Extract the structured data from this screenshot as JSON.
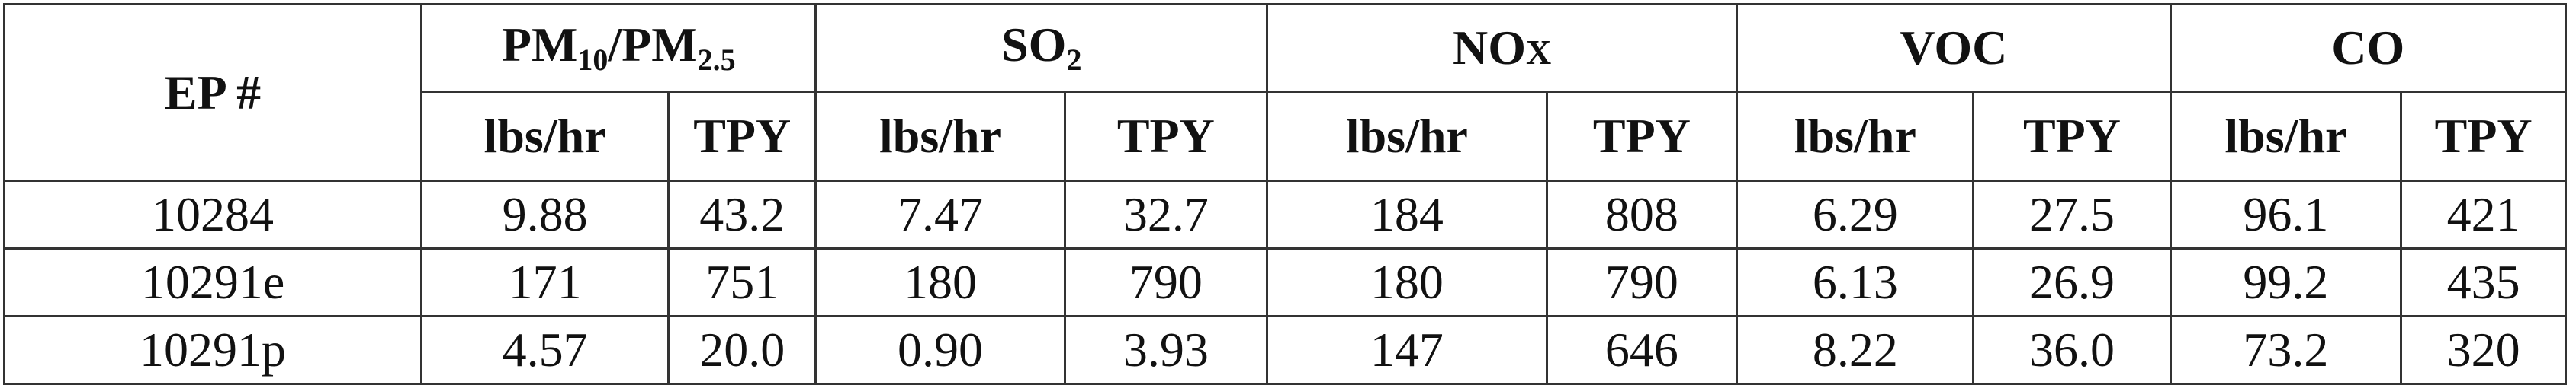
{
  "header": {
    "ep_label": "EP #",
    "groups": [
      {
        "main": "PM",
        "sub1": "10",
        "sep": "/PM",
        "sub2": "2.5"
      },
      {
        "main": "SO",
        "sub1": "2"
      },
      {
        "main": "NO",
        "small": "X"
      },
      {
        "main": "VOC"
      },
      {
        "main": "CO"
      }
    ],
    "units": [
      "lbs/hr",
      "TPY",
      "lbs/hr",
      "TPY",
      "lbs/hr",
      "TPY",
      "lbs/hr",
      "TPY",
      "lbs/hr",
      "TPY"
    ]
  },
  "rows": [
    {
      "ep": "10284",
      "values": [
        "9.88",
        "43.2",
        "7.47",
        "32.7",
        "184",
        "808",
        "6.29",
        "27.5",
        "96.1",
        "421"
      ]
    },
    {
      "ep": "10291e",
      "values": [
        "171",
        "751",
        "180",
        "790",
        "180",
        "790",
        "6.13",
        "26.9",
        "99.2",
        "435"
      ]
    },
    {
      "ep": "10291p",
      "values": [
        "4.57",
        "20.0",
        "0.90",
        "3.93",
        "147",
        "646",
        "8.22",
        "36.0",
        "73.2",
        "320"
      ]
    }
  ]
}
